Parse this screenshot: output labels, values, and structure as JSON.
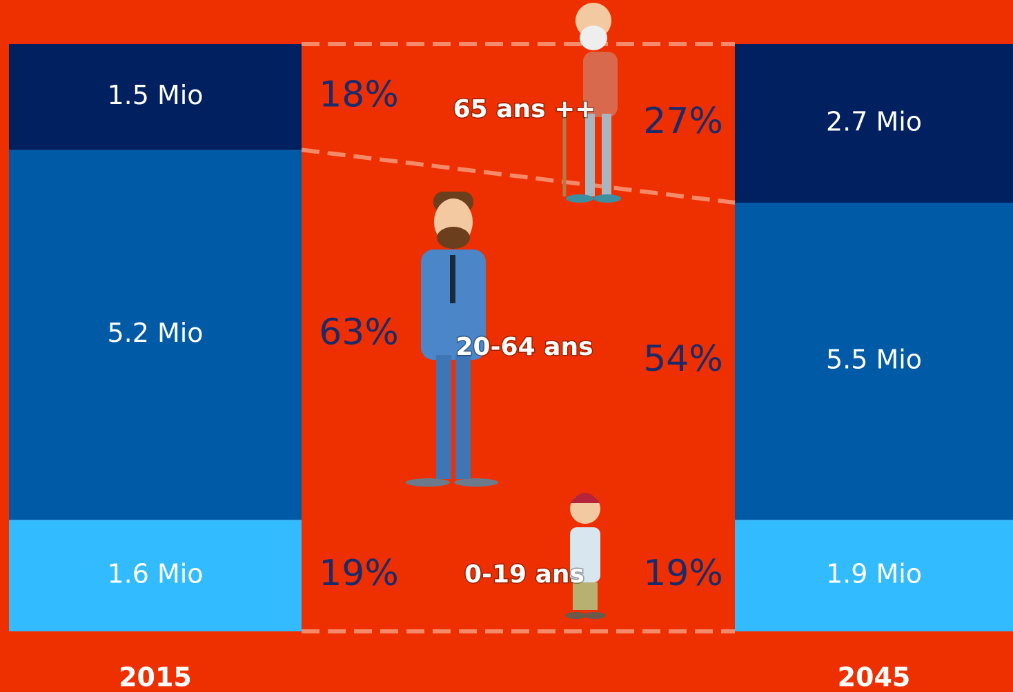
{
  "chart_data": {
    "type": "stacked-bar",
    "categories": [
      "2015",
      "2045"
    ],
    "ylim": [
      0,
      100
    ],
    "series": [
      {
        "name": "0-19 ans",
        "color": "#33bbff",
        "values": [
          19,
          19
        ],
        "value_labels": [
          "19%",
          "19%"
        ],
        "population": [
          1.6,
          1.9
        ],
        "population_labels": [
          "1.6 Mio",
          "1.9 Mio"
        ]
      },
      {
        "name": "20-64 ans",
        "color": "#005aa5",
        "values": [
          63,
          54
        ],
        "value_labels": [
          "63%",
          "54%"
        ],
        "population": [
          5.2,
          5.5
        ],
        "population_labels": [
          "5.2 Mio",
          "5.5 Mio"
        ]
      },
      {
        "name": "65 ans ++",
        "color": "#00205f",
        "values": [
          18,
          27
        ],
        "value_labels": [
          "18%",
          "27%"
        ],
        "population": [
          1.5,
          2.7
        ],
        "population_labels": [
          "1.5 Mio",
          "2.7 Mio"
        ]
      }
    ]
  }
}
